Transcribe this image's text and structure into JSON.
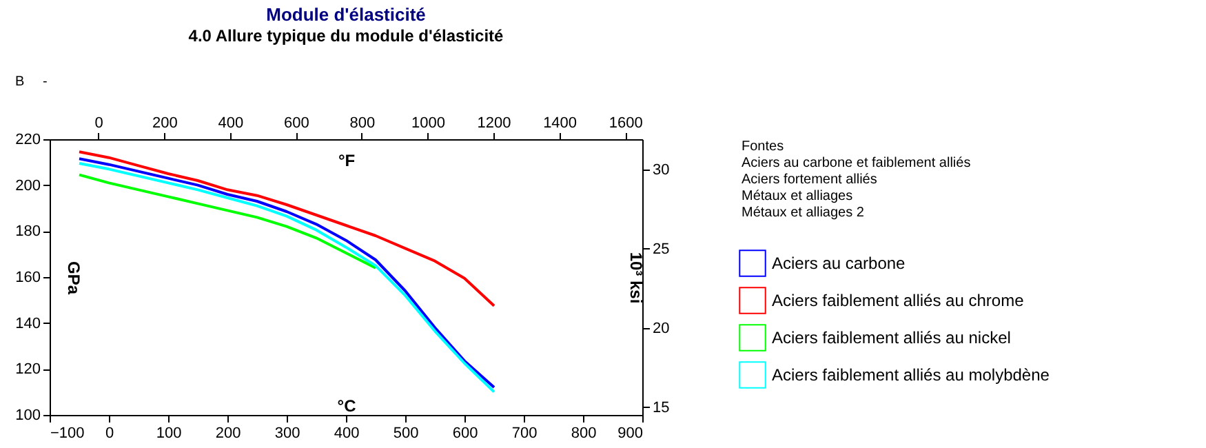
{
  "chart_data": {
    "type": "line",
    "title": "Module d'élasticité",
    "subtitle": "4.0  Allure typique du module d'élasticité",
    "ylabel": "GPa",
    "y2label": "10³ ksi",
    "xlabel": "°C",
    "x2label": "°F",
    "annotations": [
      "B",
      "-",
      "Fontes",
      "Aciers au carbone et faiblement alliés",
      "Aciers fortement alliés",
      "Métaux et alliages",
      "Métaux et alliages 2"
    ],
    "x": [
      -50,
      0,
      50,
      100,
      150,
      200,
      250,
      300,
      350,
      400,
      450,
      500,
      550,
      600,
      650
    ],
    "series": [
      {
        "name": "Aciers au carbone",
        "color": "#0000ff",
        "values": [
          211.5,
          209,
          206,
          203,
          200,
          196,
          193,
          188.5,
          183,
          176,
          167.5,
          154,
          138,
          123.5,
          112
        ]
      },
      {
        "name": "Aciers faiblement alliés au chrome",
        "color": "#ff0000",
        "values": [
          214.5,
          212,
          208.5,
          205,
          202,
          198,
          195.5,
          191.5,
          187,
          182.5,
          178,
          172.5,
          167,
          159.5,
          147.5
        ]
      },
      {
        "name": "Aciers faiblement alliés au nickel",
        "color": "#00ff00",
        "values": [
          204.5,
          201,
          198,
          195,
          192,
          189,
          186,
          182,
          177,
          170.5,
          164,
          null,
          null,
          null,
          null
        ]
      },
      {
        "name": "Aciers faiblement alliés au molybdène",
        "color": "#00ffff",
        "values": [
          209.5,
          207,
          204,
          201,
          198,
          194.5,
          191,
          186.5,
          180.5,
          173,
          165,
          152,
          136.5,
          122.5,
          110
        ]
      }
    ],
    "xlim": [
      -100,
      900
    ],
    "xticks": [
      -100,
      0,
      100,
      200,
      300,
      400,
      500,
      600,
      700,
      800,
      900
    ],
    "ylim": [
      100,
      220
    ],
    "yticks": [
      100,
      120,
      140,
      160,
      180,
      200,
      220
    ],
    "x2lim": [
      -148,
      1652
    ],
    "x2ticks": [
      0,
      200,
      400,
      600,
      800,
      1000,
      1200,
      1400,
      1600
    ],
    "y2lim": [
      14.5,
      31.9
    ],
    "y2ticks": [
      15,
      20,
      25,
      30
    ],
    "legend": "right",
    "grid": false
  }
}
